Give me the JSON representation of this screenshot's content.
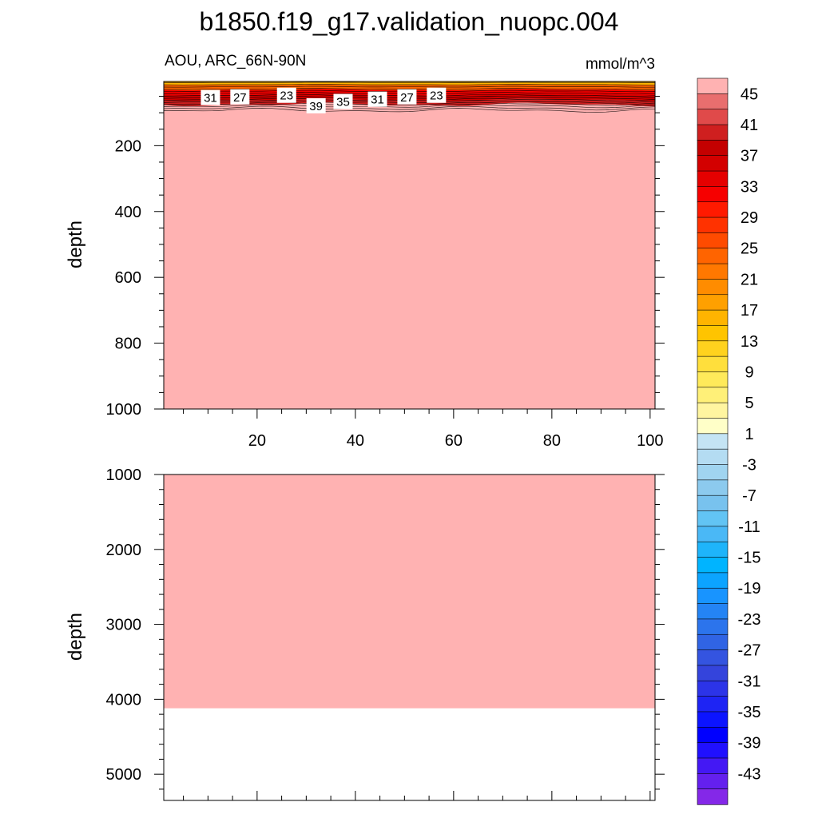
{
  "title": "b1850.f19_g17.validation_nuopc.004",
  "chart_data": [
    {
      "type": "contour",
      "panel": "upper",
      "left_label": "AOU, ARC_66N-90N",
      "right_label": "mmol/m^3",
      "ylabel": "depth",
      "xlim": [
        1,
        101
      ],
      "ylim": [
        1000,
        5
      ],
      "x_ticks": [
        20,
        40,
        60,
        80,
        100
      ],
      "y_ticks": [
        200,
        400,
        600,
        800,
        1000
      ],
      "fill_value": 47,
      "surface_gradient": [
        {
          "depth": 5,
          "aou": 10
        },
        {
          "depth": 15,
          "aou": 18
        },
        {
          "depth": 30,
          "aou": 26
        },
        {
          "depth": 45,
          "aou": 33
        },
        {
          "depth": 60,
          "aou": 38
        },
        {
          "depth": 75,
          "aou": 42
        },
        {
          "depth": 95,
          "aou": 47
        }
      ],
      "contour_labels": [
        {
          "text": "31",
          "x": 10.5,
          "depth": 55
        },
        {
          "text": "27",
          "x": 16.5,
          "depth": 53
        },
        {
          "text": "23",
          "x": 26,
          "depth": 48
        },
        {
          "text": "39",
          "x": 32,
          "depth": 80
        },
        {
          "text": "35",
          "x": 37.5,
          "depth": 67
        },
        {
          "text": "31",
          "x": 44.5,
          "depth": 60
        },
        {
          "text": "27",
          "x": 50.5,
          "depth": 53
        },
        {
          "text": "23",
          "x": 56.5,
          "depth": 48
        }
      ]
    },
    {
      "type": "contour",
      "panel": "lower",
      "ylabel": "depth",
      "xlim": [
        1,
        101
      ],
      "ylim": [
        5350,
        1000
      ],
      "y_ticks": [
        1000,
        2000,
        3000,
        4000,
        5000
      ],
      "fill_value": 47,
      "bottom_depth": 4120
    }
  ],
  "colorbar": {
    "labels": [
      "45",
      "41",
      "37",
      "33",
      "29",
      "25",
      "21",
      "17",
      "13",
      "9",
      "5",
      "1",
      "-3",
      "-7",
      "-11",
      "-15",
      "-19",
      "-23",
      "-27",
      "-31",
      "-35",
      "-39",
      "-43"
    ],
    "colors": [
      "#ffb2b2",
      "#e86e6e",
      "#e04a4a",
      "#cf1f1f",
      "#c40000",
      "#d30000",
      "#e50000",
      "#f60000",
      "#ff1a00",
      "#ff3200",
      "#ff4b00",
      "#ff6400",
      "#ff7800",
      "#ff8c00",
      "#ffa000",
      "#ffb400",
      "#ffc400",
      "#ffd21e",
      "#ffdf3c",
      "#ffea5a",
      "#fff078",
      "#fff5a0",
      "#ffffc8",
      "#c4e4f4",
      "#b4dcf2",
      "#a0d4f0",
      "#8ccaee",
      "#78c2ee",
      "#62c4f4",
      "#4ab8f6",
      "#1eb4fa",
      "#00b4ff",
      "#0ca4ff",
      "#1894ff",
      "#2484f4",
      "#2c74ec",
      "#3064e4",
      "#3454e0",
      "#3444dc",
      "#2c34e8",
      "#1e24f4",
      "#0c14ff",
      "#0000ff",
      "#2010ff",
      "#4418f4",
      "#6420ee",
      "#8428e8"
    ]
  }
}
